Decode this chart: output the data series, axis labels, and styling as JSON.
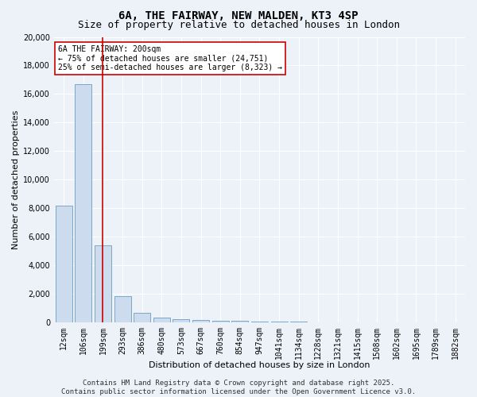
{
  "title": "6A, THE FAIRWAY, NEW MALDEN, KT3 4SP",
  "subtitle": "Size of property relative to detached houses in London",
  "xlabel": "Distribution of detached houses by size in London",
  "ylabel": "Number of detached properties",
  "categories": [
    "12sqm",
    "106sqm",
    "199sqm",
    "293sqm",
    "386sqm",
    "480sqm",
    "573sqm",
    "667sqm",
    "760sqm",
    "854sqm",
    "947sqm",
    "1041sqm",
    "1134sqm",
    "1228sqm",
    "1321sqm",
    "1415sqm",
    "1508sqm",
    "1602sqm",
    "1695sqm",
    "1789sqm",
    "1882sqm"
  ],
  "values": [
    8200,
    16700,
    5400,
    1850,
    700,
    350,
    250,
    175,
    140,
    110,
    80,
    60,
    50,
    40,
    30,
    25,
    20,
    15,
    12,
    10,
    8
  ],
  "bar_color": "#ccdcee",
  "bar_edge_color": "#6a9ec0",
  "red_line_index": 2,
  "ylim": [
    0,
    20000
  ],
  "yticks": [
    0,
    2000,
    4000,
    6000,
    8000,
    10000,
    12000,
    14000,
    16000,
    18000,
    20000
  ],
  "annotation_text": "6A THE FAIRWAY: 200sqm\n← 75% of detached houses are smaller (24,751)\n25% of semi-detached houses are larger (8,323) →",
  "annotation_box_color": "#ffffff",
  "annotation_border_color": "#cc0000",
  "footer_line1": "Contains HM Land Registry data © Crown copyright and database right 2025.",
  "footer_line2": "Contains public sector information licensed under the Open Government Licence v3.0.",
  "background_color": "#edf2f9",
  "grid_color": "#ffffff",
  "title_fontsize": 10,
  "subtitle_fontsize": 9,
  "axis_fontsize": 8,
  "tick_fontsize": 7,
  "annot_fontsize": 7,
  "footer_fontsize": 6.5
}
